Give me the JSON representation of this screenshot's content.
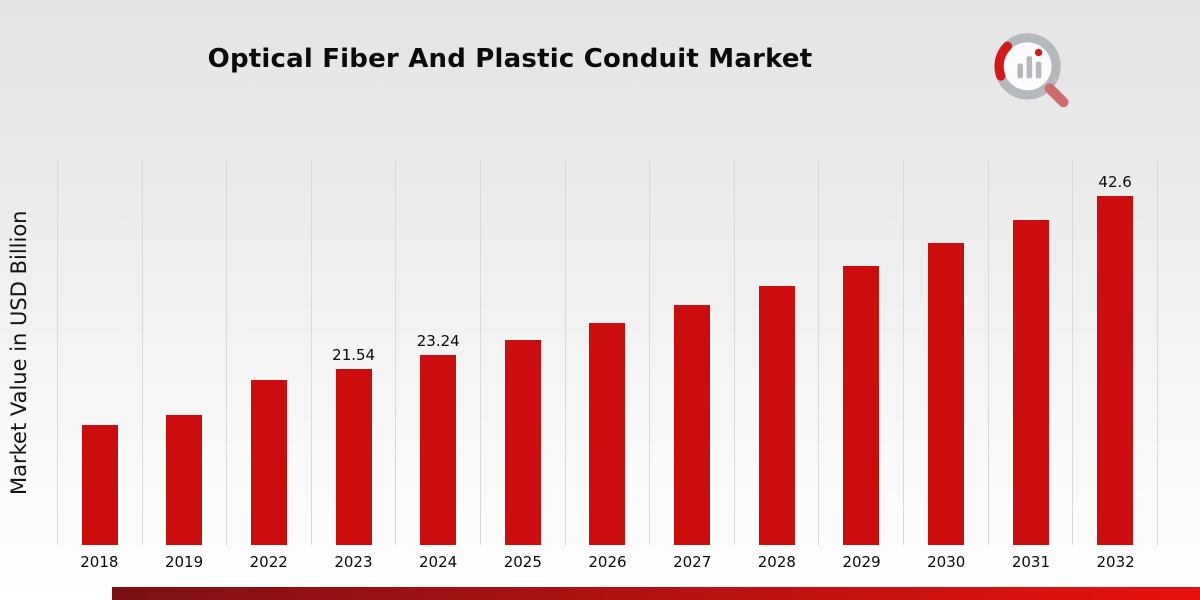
{
  "chart_data": {
    "type": "bar",
    "title": "Optical Fiber And Plastic Conduit Market",
    "ylabel": "Market Value in USD Billion",
    "xlabel": "",
    "categories": [
      "2018",
      "2019",
      "2022",
      "2023",
      "2024",
      "2025",
      "2026",
      "2027",
      "2028",
      "2029",
      "2030",
      "2031",
      "2032"
    ],
    "values": [
      14.6,
      15.9,
      20.1,
      21.54,
      23.24,
      25.0,
      27.1,
      29.3,
      31.6,
      34.1,
      36.9,
      39.7,
      42.6
    ],
    "bar_labels": [
      "",
      "",
      "",
      "21.54",
      "23.24",
      "",
      "",
      "",
      "",
      "",
      "",
      "",
      "42.6"
    ],
    "ylim": [
      0,
      47
    ],
    "bar_color": "#cb0d0e",
    "gridlines": "vertical",
    "legend": "none"
  },
  "theme": {
    "background_top": "#e4e4e4",
    "background_bottom": "#ffffff",
    "gridline_color": "#d9d9d9",
    "text_color": "#0a0a0a",
    "accent_bar_gradient_left": "#7d1113",
    "accent_bar_gradient_right": "#e8120f",
    "logo_gray": "#b5b8bc",
    "logo_red": "#d41717"
  },
  "logo": {
    "name": "market-research-brand-logo"
  }
}
